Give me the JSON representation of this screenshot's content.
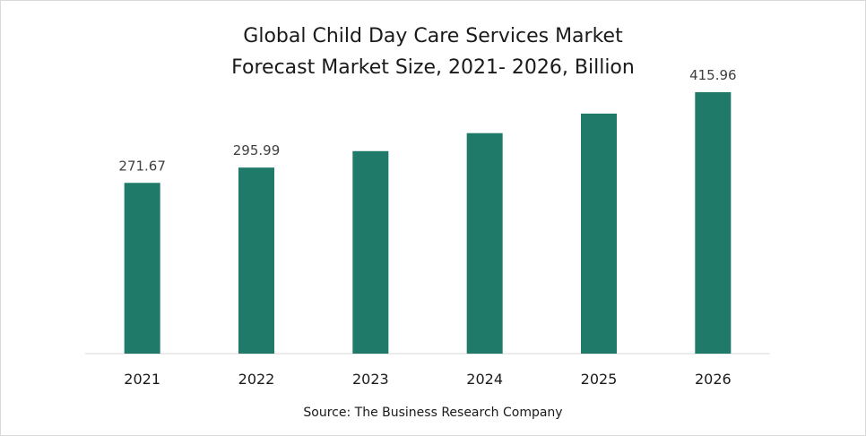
{
  "chart_data": {
    "type": "bar",
    "title_lines": [
      "Global Child Day Care Services Market",
      "Forecast Market Size, 2021- 2026, Billion"
    ],
    "categories": [
      "2021",
      "2022",
      "2023",
      "2024",
      "2025",
      "2026"
    ],
    "values": [
      271.67,
      295.99,
      322.2,
      350.8,
      381.9,
      415.96
    ],
    "data_labels": [
      "271.67",
      "295.99",
      "",
      "",
      "",
      "415.96"
    ],
    "xlabel": "",
    "ylabel": "",
    "ylim": [
      0,
      480
    ],
    "grid": false,
    "legend": "none",
    "bar_color": "#1f7a6a",
    "source": "Source: The Business Research Company"
  }
}
